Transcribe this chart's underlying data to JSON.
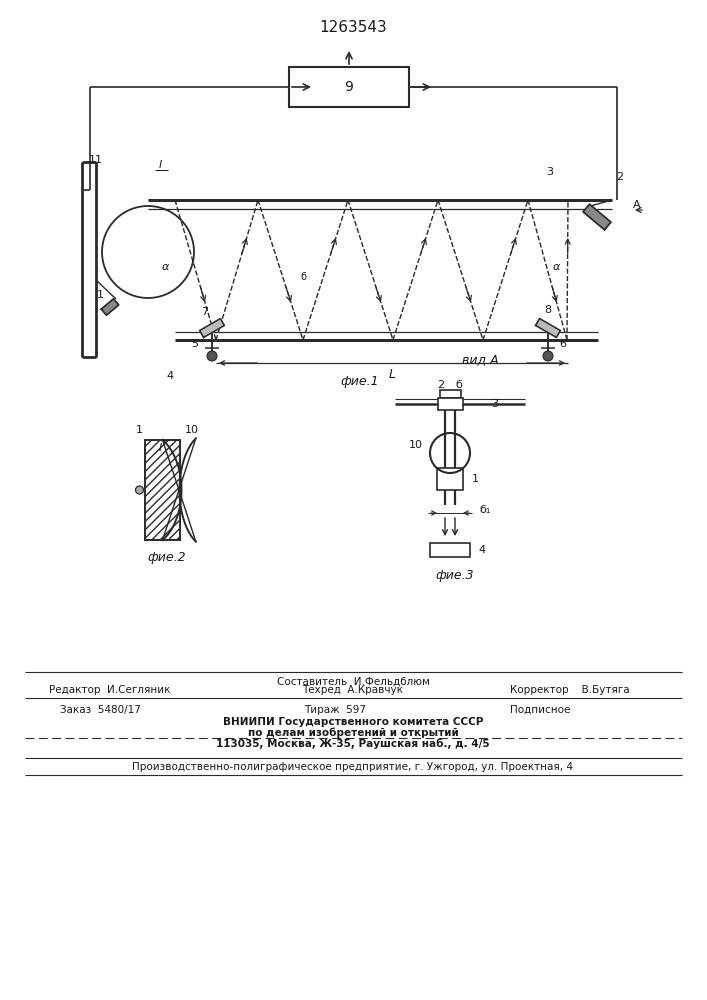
{
  "title": "1263543",
  "fig1_label": "фие.1",
  "fig2_label": "фие.2",
  "fig3_label": "фие.3",
  "vid_a_label": "вид А",
  "background": "#ffffff",
  "line_color": "#2a2a2a",
  "text_color": "#1a1a1a",
  "footer_line1": "Составитель  И.Фельдблюм",
  "footer_line2_left": "Редактор  И.Сегляник",
  "footer_line2_mid": "Техред  А.Кравчук",
  "footer_line2_right": "Корректор    В.Бутяга",
  "footer_line3_left": "Заказ  5480/17",
  "footer_line3_mid": "Тираж  597",
  "footer_line3_right": "Подписное",
  "footer_line4": "ВНИИПИ Государственного комитета СССР",
  "footer_line5": "по делам изобретений и открытий",
  "footer_line6": "113035, Москва, Ж-35, Раушская наб., д. 4/5",
  "footer_bottom": "Производственно-полиграфическое предприятие, г. Ужгород, ул. Проектная, 4"
}
